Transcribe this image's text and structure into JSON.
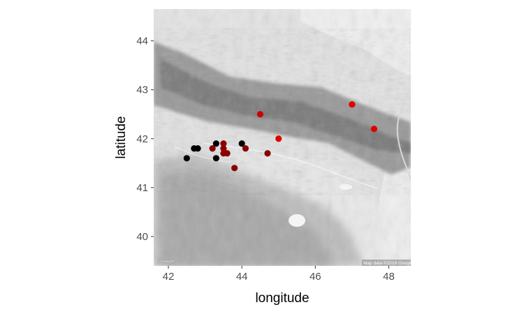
{
  "chart_data": {
    "type": "scatter",
    "basemap": "Google terrain (grayscale)",
    "xlabel": "longitude",
    "ylabel": "latitude",
    "xlim": [
      41.6,
      48.6
    ],
    "ylim": [
      39.4,
      44.65
    ],
    "x_ticks": [
      42,
      44,
      46,
      48
    ],
    "y_ticks": [
      40,
      41,
      42,
      43,
      44
    ],
    "grid": false,
    "legend": "none",
    "colors": {
      "black": "#000000",
      "darkred": "#8b0000",
      "red": "#e00000",
      "axis_text": "#4d4d4d",
      "tick": "#333333"
    },
    "points": [
      {
        "x": 42.5,
        "y": 41.6,
        "color": "#000000"
      },
      {
        "x": 42.7,
        "y": 41.8,
        "color": "#000000"
      },
      {
        "x": 42.8,
        "y": 41.8,
        "color": "#000000"
      },
      {
        "x": 43.3,
        "y": 41.9,
        "color": "#000000"
      },
      {
        "x": 43.3,
        "y": 41.6,
        "color": "#000000"
      },
      {
        "x": 44.0,
        "y": 41.9,
        "color": "#000000"
      },
      {
        "x": 43.2,
        "y": 41.8,
        "color": "#8b0000"
      },
      {
        "x": 43.5,
        "y": 41.9,
        "color": "#8b0000"
      },
      {
        "x": 43.5,
        "y": 41.8,
        "color": "#8b0000"
      },
      {
        "x": 43.5,
        "y": 41.7,
        "color": "#8b0000"
      },
      {
        "x": 43.6,
        "y": 41.7,
        "color": "#8b0000"
      },
      {
        "x": 43.8,
        "y": 41.4,
        "color": "#8b0000"
      },
      {
        "x": 44.1,
        "y": 41.8,
        "color": "#8b0000"
      },
      {
        "x": 44.7,
        "y": 41.7,
        "color": "#8b0000"
      },
      {
        "x": 44.5,
        "y": 42.5,
        "color": "#cc0000"
      },
      {
        "x": 45.0,
        "y": 42.0,
        "color": "#e00000"
      },
      {
        "x": 47.0,
        "y": 42.7,
        "color": "#e00000"
      },
      {
        "x": 47.6,
        "y": 42.2,
        "color": "#e00000"
      }
    ],
    "attribution": "Map data ©2018 Google",
    "logo_text": "Google"
  }
}
